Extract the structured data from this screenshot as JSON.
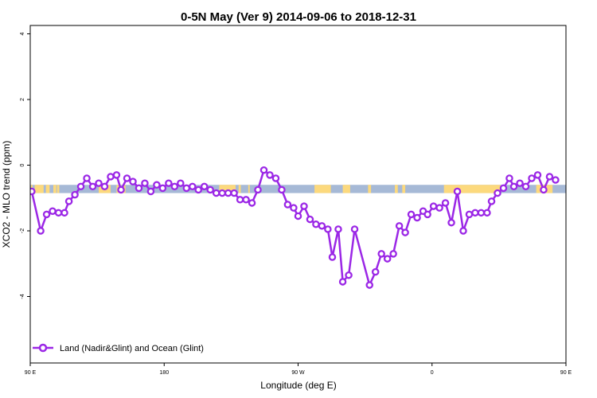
{
  "chart_data": {
    "type": "line",
    "title": "0-5N May (Ver 9)   2014-09-06 to 2018-12-31",
    "xlabel": "Longitude (deg E)",
    "ylabel": "XCO2 - MLO trend (ppm)",
    "xlim": [
      90,
      450
    ],
    "ylim": [
      -6,
      4
    ],
    "x_ticks": [
      {
        "value": 90,
        "label": "90 E"
      },
      {
        "value": 180,
        "label": "180"
      },
      {
        "value": 270,
        "label": "90 W"
      },
      {
        "value": 360,
        "label": "0"
      },
      {
        "value": 450,
        "label": "90 E"
      },
      {
        "value": 540,
        "label": "180"
      }
    ],
    "y_ticks": [
      {
        "value": 4,
        "label": "4"
      },
      {
        "value": 2,
        "label": "2"
      },
      {
        "value": 0,
        "label": "0"
      },
      {
        "value": -2,
        "label": "-2"
      },
      {
        "value": -4,
        "label": "-4"
      }
    ],
    "grid": false,
    "legend": {
      "position": "bottom-left",
      "label": "Land (Nadir&Glint) and Ocean (Glint)"
    },
    "surface_band": {
      "y_range": [
        -0.85,
        -0.6
      ],
      "ocean_color": "#a6b9d6",
      "land_color": "#fcd97d",
      "land_segments": [
        [
          90.5,
          91.5
        ],
        [
          93,
          99
        ],
        [
          100.5,
          103
        ],
        [
          105.5,
          107.5
        ],
        [
          108,
          109.5
        ],
        [
          136,
          144
        ],
        [
          148,
          151
        ],
        [
          152,
          154
        ],
        [
          217,
          228
        ],
        [
          230,
          231.5
        ],
        [
          236.5,
          237.5
        ],
        [
          281,
          292
        ],
        [
          300,
          305
        ],
        [
          317,
          319
        ],
        [
          335,
          337
        ],
        [
          340,
          342
        ],
        [
          368,
          406
        ],
        [
          430,
          441
        ],
        [
          458,
          462
        ],
        [
          464,
          466
        ]
      ]
    },
    "series": [
      {
        "name": "Land (Nadir&Glint) and Ocean (Glint)",
        "color": "#9b27e6",
        "points": [
          [
            91,
            -0.8
          ],
          [
            97,
            -2.0
          ],
          [
            101,
            -1.5
          ],
          [
            105,
            -1.4
          ],
          [
            109,
            -1.45
          ],
          [
            113,
            -1.45
          ],
          [
            116,
            -1.1
          ],
          [
            120,
            -0.9
          ],
          [
            124,
            -0.65
          ],
          [
            128,
            -0.4
          ],
          [
            132,
            -0.65
          ],
          [
            136,
            -0.55
          ],
          [
            140,
            -0.65
          ],
          [
            144,
            -0.35
          ],
          [
            148,
            -0.3
          ],
          [
            151,
            -0.75
          ],
          [
            155,
            -0.4
          ],
          [
            159,
            -0.5
          ],
          [
            163,
            -0.7
          ],
          [
            167,
            -0.55
          ],
          [
            171,
            -0.8
          ],
          [
            175,
            -0.6
          ],
          [
            179,
            -0.7
          ],
          [
            183,
            -0.55
          ],
          [
            187,
            -0.65
          ],
          [
            191,
            -0.55
          ],
          [
            195,
            -0.7
          ],
          [
            199,
            -0.65
          ],
          [
            203,
            -0.75
          ],
          [
            207,
            -0.65
          ],
          [
            211,
            -0.75
          ],
          [
            215,
            -0.85
          ],
          [
            219,
            -0.85
          ],
          [
            223,
            -0.85
          ],
          [
            227,
            -0.85
          ],
          [
            231,
            -1.05
          ],
          [
            235,
            -1.05
          ],
          [
            239,
            -1.15
          ],
          [
            243,
            -0.75
          ],
          [
            247,
            -0.15
          ],
          [
            251,
            -0.3
          ],
          [
            255,
            -0.4
          ],
          [
            259,
            -0.75
          ],
          [
            263,
            -1.2
          ],
          [
            267,
            -1.3
          ],
          [
            270,
            -1.55
          ],
          [
            274,
            -1.25
          ],
          [
            278,
            -1.65
          ],
          [
            282,
            -1.8
          ],
          [
            286,
            -1.85
          ],
          [
            290,
            -1.95
          ],
          [
            293,
            -2.8
          ],
          [
            297,
            -1.95
          ],
          [
            300,
            -3.55
          ],
          [
            304,
            -3.35
          ],
          [
            308,
            -1.95
          ],
          [
            318,
            -3.65
          ],
          [
            322,
            -3.25
          ],
          [
            326,
            -2.7
          ],
          [
            330,
            -2.85
          ],
          [
            334,
            -2.7
          ],
          [
            338,
            -1.85
          ],
          [
            342,
            -2.05
          ],
          [
            346,
            -1.5
          ],
          [
            350,
            -1.6
          ],
          [
            354,
            -1.4
          ],
          [
            357,
            -1.5
          ],
          [
            361,
            -1.25
          ],
          [
            365,
            -1.3
          ],
          [
            369,
            -1.15
          ],
          [
            373,
            -1.75
          ],
          [
            377,
            -0.8
          ],
          [
            381,
            -2.0
          ],
          [
            385,
            -1.5
          ],
          [
            389,
            -1.45
          ],
          [
            393,
            -1.45
          ],
          [
            397,
            -1.45
          ],
          [
            400,
            -1.1
          ],
          [
            404,
            -0.85
          ],
          [
            408,
            -0.7
          ],
          [
            412,
            -0.4
          ],
          [
            415,
            -0.65
          ],
          [
            419,
            -0.55
          ],
          [
            423,
            -0.65
          ],
          [
            427,
            -0.4
          ],
          [
            431,
            -0.3
          ],
          [
            435,
            -0.75
          ],
          [
            439,
            -0.35
          ],
          [
            443,
            -0.45
          ]
        ]
      }
    ]
  }
}
